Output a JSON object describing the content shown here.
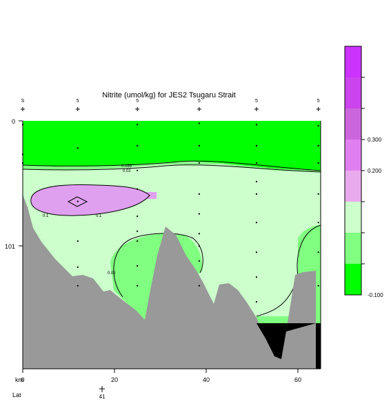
{
  "chart_data": {
    "type": "heatmap",
    "title": "Nitrite (umol/kg) for JES2 Tsugaru Strait",
    "xlabel": "km",
    "x_secondary_label": "Lat",
    "xlim": [
      0,
      65
    ],
    "ylim": [
      0,
      200
    ],
    "x_ticks": [
      "0",
      "20",
      "40",
      "60"
    ],
    "y_ticks": [
      "0",
      "101"
    ],
    "lat_tick": "41",
    "stations": [
      {
        "km": 0,
        "label": "S",
        "samples_depth": [
          3,
          27,
          34
        ]
      },
      {
        "km": 12,
        "label": "5",
        "samples_depth": [
          22,
          65,
          97,
          118,
          133
        ]
      },
      {
        "km": 25,
        "label": "5",
        "samples_depth": [
          3,
          20,
          40,
          55,
          77,
          89,
          97,
          117,
          133
        ]
      },
      {
        "km": 38.5,
        "label": "5",
        "samples_depth": [
          2,
          20,
          34,
          59,
          75,
          91,
          101,
          113,
          133
        ]
      },
      {
        "km": 51,
        "label": "5",
        "samples_depth": [
          3,
          20,
          34,
          49,
          59,
          82,
          106,
          126,
          146
        ]
      },
      {
        "km": 64.5,
        "label": "5",
        "samples_depth": [
          4,
          20,
          34,
          59,
          82,
          106,
          133
        ]
      }
    ],
    "colorbar": {
      "colors": [
        "#00ff00",
        "#80ff80",
        "#ccffcc",
        "#eaaaee",
        "#e080f0",
        "#cc66dd",
        "#cc44ee",
        "#cc33ff"
      ],
      "labels": [
        "-0.100",
        "0.200",
        "0.300"
      ]
    },
    "contours": [
      {
        "label": "0.1",
        "color": "#000000"
      },
      {
        "label": "0.1",
        "color": "#000000"
      },
      {
        "label": "0.02",
        "color": "#000000"
      },
      {
        "label": "0.02",
        "color": "#000000"
      },
      {
        "label": "0.069",
        "color": "#000000"
      }
    ],
    "topography_color": "#999999",
    "colors": {
      "green": "#00ff00",
      "light_green": "#80ff80",
      "pale_green": "#ccffcc",
      "pink": "#e0a0f0",
      "black": "#000000"
    }
  }
}
